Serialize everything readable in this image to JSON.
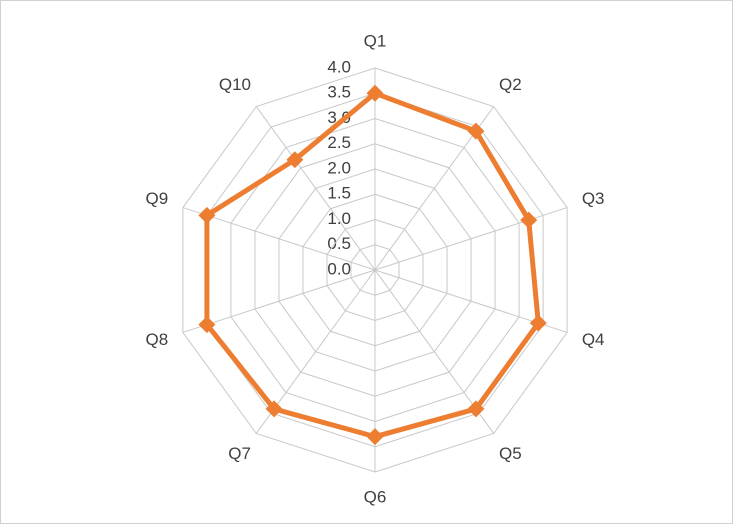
{
  "chart_data": {
    "type": "radar",
    "categories": [
      "Q1",
      "Q2",
      "Q3",
      "Q4",
      "Q5",
      "Q6",
      "Q7",
      "Q8",
      "Q9",
      "Q10"
    ],
    "values": [
      3.5,
      3.4,
      3.2,
      3.4,
      3.4,
      3.3,
      3.4,
      3.5,
      3.5,
      2.7
    ],
    "color": "#ed7d31",
    "rlim": [
      0,
      4
    ],
    "rticks": [
      {
        "value": 0,
        "label": "0.0"
      },
      {
        "value": 0.5,
        "label": "0.5"
      },
      {
        "value": 1,
        "label": "1.0"
      },
      {
        "value": 1.5,
        "label": "1.5"
      },
      {
        "value": 2,
        "label": "2.0"
      },
      {
        "value": 2.5,
        "label": "2.5"
      },
      {
        "value": 3,
        "label": "3.0"
      },
      {
        "value": 3.5,
        "label": "3.5"
      },
      {
        "value": 4,
        "label": "4.0"
      }
    ],
    "grid": true
  }
}
